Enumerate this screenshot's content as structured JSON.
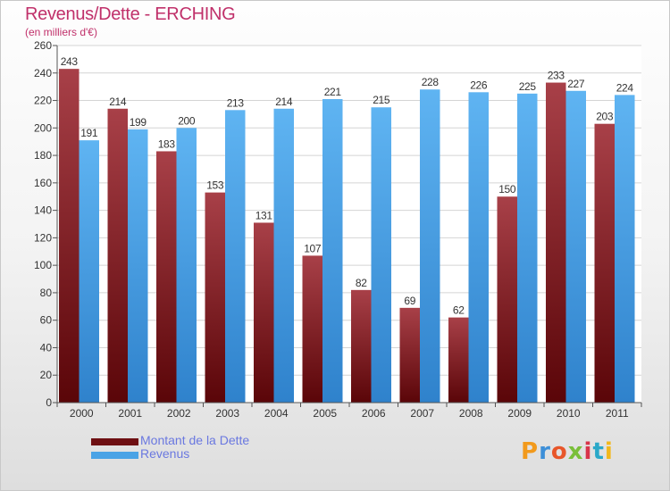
{
  "header": {
    "title": "Revenus/Dette - ERCHING",
    "subtitle": "(en milliers d'€)"
  },
  "logo": {
    "text": "Proxiti"
  },
  "colors": {
    "dette": "#7a1a1e",
    "revenus": "#4aa3e6",
    "title": "#c0306a",
    "legend_text": "#6a78e0"
  },
  "chart_data": {
    "type": "bar",
    "title": "Revenus/Dette - ERCHING",
    "ylabel": "(en milliers d'€)",
    "categories": [
      "2000",
      "2001",
      "2002",
      "2003",
      "2004",
      "2005",
      "2006",
      "2007",
      "2008",
      "2009",
      "2010",
      "2011"
    ],
    "series": [
      {
        "name": "Montant de la Dette",
        "values": [
          243,
          214,
          183,
          153,
          131,
          107,
          82,
          69,
          62,
          150,
          233,
          203
        ]
      },
      {
        "name": "Revenus",
        "values": [
          191,
          199,
          200,
          213,
          214,
          221,
          215,
          228,
          226,
          225,
          227,
          224
        ]
      }
    ],
    "ylim": [
      0,
      260
    ],
    "yticks": [
      "0",
      "20",
      "40",
      "60",
      "80",
      "100",
      "120",
      "140",
      "160",
      "180",
      "200",
      "220",
      "240",
      "260"
    ],
    "grid": true,
    "legend": "bottom-left"
  }
}
